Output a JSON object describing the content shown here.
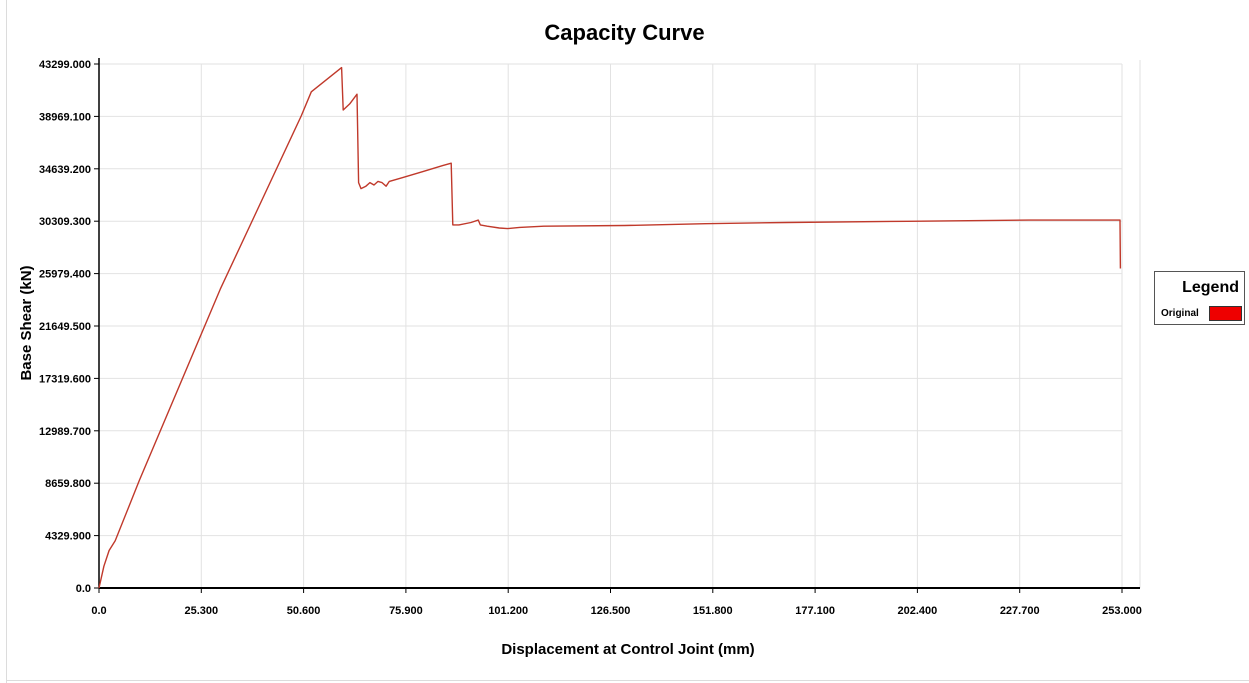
{
  "chart_data": {
    "type": "line",
    "title": "Capacity Curve",
    "xlabel": "Displacement at Control Joint (mm)",
    "ylabel": "Base Shear (kN)",
    "xlim": [
      0,
      253
    ],
    "ylim": [
      0,
      43299
    ],
    "x_ticks": [
      "0.0",
      "25.300",
      "50.600",
      "75.900",
      "101.200",
      "126.500",
      "151.800",
      "177.100",
      "202.400",
      "227.700",
      "253.000"
    ],
    "y_ticks": [
      "0.0",
      "4329.900",
      "8659.800",
      "12989.700",
      "17319.600",
      "21649.500",
      "25979.400",
      "30309.300",
      "34639.200",
      "38969.100",
      "43299.000"
    ],
    "grid": true,
    "legend_title": "Legend",
    "legend_position": "right",
    "series": [
      {
        "name": "Original",
        "color": "#c0392b",
        "legend_color": "#ee0000",
        "points": [
          [
            0,
            0
          ],
          [
            1.2,
            1800
          ],
          [
            2.5,
            3100
          ],
          [
            4,
            3900
          ],
          [
            10,
            8900
          ],
          [
            30,
            24700
          ],
          [
            50,
            39000
          ],
          [
            52.5,
            41000
          ],
          [
            60,
            43000
          ],
          [
            60.4,
            39500
          ],
          [
            62,
            40000
          ],
          [
            63.8,
            40800
          ],
          [
            64.2,
            33500
          ],
          [
            64.8,
            33000
          ],
          [
            66,
            33200
          ],
          [
            67,
            33500
          ],
          [
            68,
            33300
          ],
          [
            69,
            33600
          ],
          [
            70,
            33500
          ],
          [
            71,
            33200
          ],
          [
            71.8,
            33600
          ],
          [
            75,
            33900
          ],
          [
            80,
            34400
          ],
          [
            85,
            34900
          ],
          [
            87.1,
            35100
          ],
          [
            87.5,
            30000
          ],
          [
            89,
            30000
          ],
          [
            92,
            30200
          ],
          [
            93.8,
            30400
          ],
          [
            94.3,
            30000
          ],
          [
            96,
            29900
          ],
          [
            99,
            29750
          ],
          [
            101,
            29700
          ],
          [
            104,
            29800
          ],
          [
            110,
            29900
          ],
          [
            130,
            29950
          ],
          [
            150,
            30100
          ],
          [
            170,
            30200
          ],
          [
            200,
            30300
          ],
          [
            230,
            30400
          ],
          [
            252.5,
            30400
          ],
          [
            252.6,
            26400
          ]
        ]
      }
    ]
  }
}
